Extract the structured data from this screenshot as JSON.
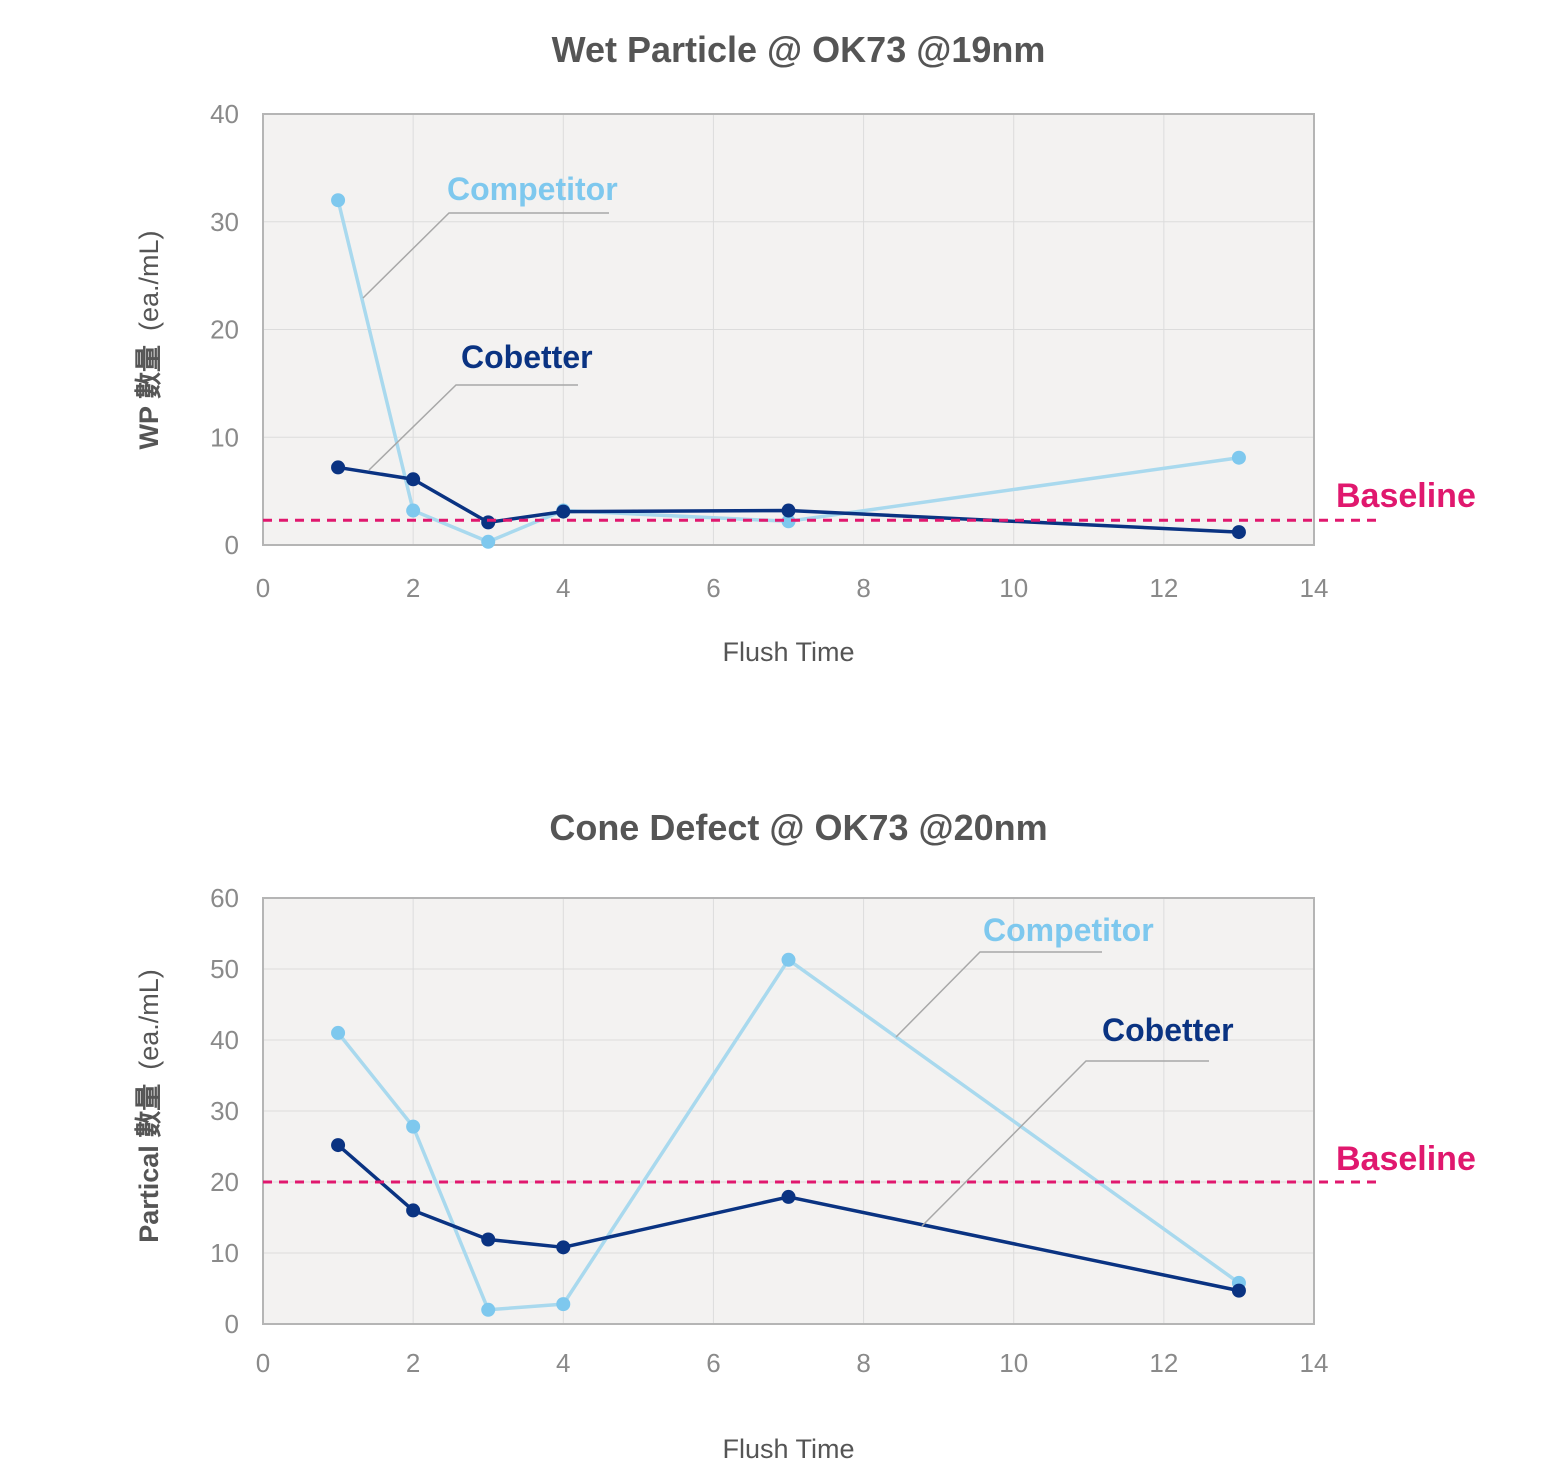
{
  "colors": {
    "competitor_line": "#a9d9ee",
    "competitor_point": "#7ec8ee",
    "competitor_text": "#7ec8ee",
    "cobetter": "#0a3382",
    "baseline": "#e0186e",
    "plot_bg": "#f3f2f1",
    "grid": "#dcdcdc",
    "frame": "#b5b5b5",
    "leader": "#a8a8a8"
  },
  "chart_data": [
    {
      "type": "line",
      "title": "Wet Particle @ OK73 @19nm",
      "xlabel": "Flush Time",
      "ylabel": "WP 數量 (ea./mL)",
      "ylabel_main": "WP 數量",
      "ylabel_unit": "(ea./mL)",
      "xlim": [
        0,
        14
      ],
      "ylim": [
        0,
        40
      ],
      "xticks": [
        "0",
        "2",
        "4",
        "6",
        "8",
        "10",
        "12",
        "14"
      ],
      "yticks": [
        "0",
        "10",
        "20",
        "30",
        "40"
      ],
      "grid": true,
      "baseline": {
        "label": "Baseline",
        "value": 2.3
      },
      "series": [
        {
          "name": "Competitor",
          "x": [
            1,
            2,
            3,
            4,
            7,
            13
          ],
          "y": [
            32,
            3.2,
            0.3,
            3.2,
            2.2,
            8.1
          ]
        },
        {
          "name": "Cobetter",
          "x": [
            1,
            2,
            3,
            4,
            7,
            13
          ],
          "y": [
            7.2,
            6.1,
            2.1,
            3.1,
            3.2,
            1.2
          ]
        }
      ]
    },
    {
      "type": "line",
      "title": "Cone Defect @ OK73 @20nm",
      "xlabel": "Flush Time",
      "ylabel": "Partical 數量 (ea./mL)",
      "ylabel_main": "Partical 數量",
      "ylabel_unit": "(ea./mL)",
      "xlim": [
        0,
        14
      ],
      "ylim": [
        0,
        60
      ],
      "xticks": [
        "0",
        "2",
        "4",
        "6",
        "8",
        "10",
        "12",
        "14"
      ],
      "yticks": [
        "0",
        "10",
        "20",
        "30",
        "40",
        "50",
        "60"
      ],
      "grid": true,
      "baseline": {
        "label": "Baseline",
        "value": 20
      },
      "series": [
        {
          "name": "Competitor",
          "x": [
            1,
            2,
            3,
            4,
            7,
            13
          ],
          "y": [
            41,
            27.8,
            2,
            2.8,
            51.3,
            5.8
          ]
        },
        {
          "name": "Cobetter",
          "x": [
            1,
            2,
            3,
            4,
            7,
            13
          ],
          "y": [
            25.2,
            16,
            11.9,
            10.8,
            17.9,
            4.7
          ]
        }
      ]
    }
  ]
}
